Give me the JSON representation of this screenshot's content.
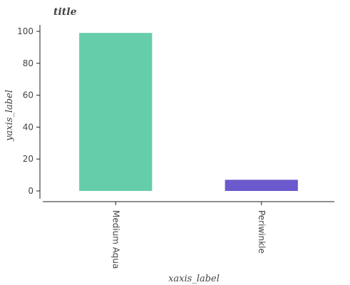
{
  "chart_data": {
    "type": "bar",
    "title": "title",
    "xlabel": "xaxis_label",
    "ylabel": "yaxis_label",
    "categories": [
      "Medium Aqua",
      "Periwinkle"
    ],
    "values": [
      99,
      7
    ],
    "colors": [
      "#66cdaa",
      "#6a5acd"
    ],
    "ylim": [
      0,
      100
    ],
    "yticks": [
      0,
      20,
      40,
      60,
      80,
      100
    ],
    "grid": false,
    "legend": "none"
  }
}
